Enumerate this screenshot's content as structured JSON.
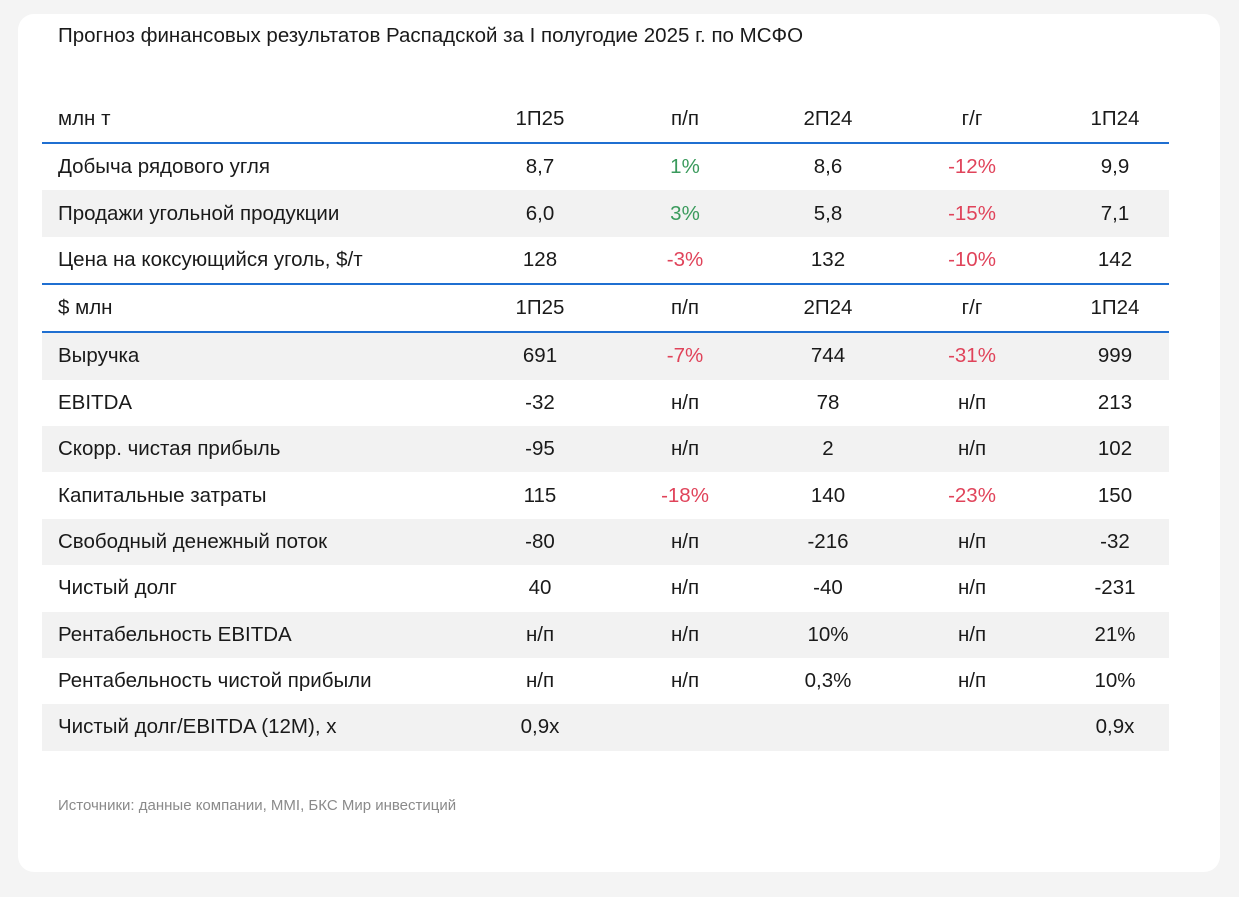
{
  "title": "Прогноз финансовых результатов Распадской за I полугодие 2025 г. по МСФО",
  "colors": {
    "accent_line": "#1f6fd1",
    "positive": "#3a9a5c",
    "negative": "#e0435a"
  },
  "sections": [
    {
      "header": [
        "млн т",
        "1П25",
        "п/п",
        "2П24",
        "г/г",
        "1П24"
      ],
      "rows": [
        {
          "cells": [
            "Добыча рядового угля",
            "8,7",
            "1%",
            "8,6",
            "-12%",
            "9,9"
          ],
          "tones": [
            "",
            "",
            "pos",
            "",
            "neg",
            ""
          ]
        },
        {
          "cells": [
            "Продажи угольной продукции",
            "6,0",
            "3%",
            "5,8",
            "-15%",
            "7,1"
          ],
          "tones": [
            "",
            "",
            "pos",
            "",
            "neg",
            ""
          ]
        },
        {
          "cells": [
            "Цена на коксующийся уголь, $/т",
            "128",
            "-3%",
            "132",
            "-10%",
            "142"
          ],
          "tones": [
            "",
            "",
            "neg",
            "",
            "neg",
            ""
          ]
        }
      ]
    },
    {
      "header": [
        "$ млн",
        "1П25",
        "п/п",
        "2П24",
        "г/г",
        "1П24"
      ],
      "rows": [
        {
          "cells": [
            "Выручка",
            "691",
            "-7%",
            "744",
            "-31%",
            "999"
          ],
          "tones": [
            "",
            "",
            "neg",
            "",
            "neg",
            ""
          ]
        },
        {
          "cells": [
            "EBITDA",
            "-32",
            "н/п",
            "78",
            "н/п",
            "213"
          ],
          "tones": [
            "",
            "",
            "",
            "",
            "",
            ""
          ]
        },
        {
          "cells": [
            "Скорр. чистая прибыль",
            "-95",
            "н/п",
            "2",
            "н/п",
            "102"
          ],
          "tones": [
            "",
            "",
            "",
            "",
            "",
            ""
          ]
        },
        {
          "cells": [
            "Капитальные затраты",
            "115",
            "-18%",
            "140",
            "-23%",
            "150"
          ],
          "tones": [
            "",
            "",
            "neg",
            "",
            "neg",
            ""
          ]
        },
        {
          "cells": [
            "Свободный денежный поток",
            "-80",
            "н/п",
            "-216",
            "н/п",
            "-32"
          ],
          "tones": [
            "",
            "",
            "",
            "",
            "",
            ""
          ]
        },
        {
          "cells": [
            "Чистый долг",
            "40",
            "н/п",
            "-40",
            "н/п",
            "-231"
          ],
          "tones": [
            "",
            "",
            "",
            "",
            "",
            ""
          ]
        },
        {
          "cells": [
            "Рентабельность EBITDA",
            "н/п",
            "н/п",
            "10%",
            "н/п",
            "21%"
          ],
          "tones": [
            "",
            "",
            "",
            "",
            "",
            ""
          ]
        },
        {
          "cells": [
            "Рентабельность чистой прибыли",
            "н/п",
            "н/п",
            "0,3%",
            "н/п",
            "10%"
          ],
          "tones": [
            "",
            "",
            "",
            "",
            "",
            ""
          ]
        },
        {
          "cells": [
            "Чистый долг/EBITDA (12М), x",
            "0,9x",
            "",
            "",
            "",
            "0,9x"
          ],
          "tones": [
            "",
            "",
            "",
            "",
            "",
            ""
          ]
        }
      ]
    }
  ],
  "source": "Источники: данные компании, MMI, БКС Мир инвестиций"
}
